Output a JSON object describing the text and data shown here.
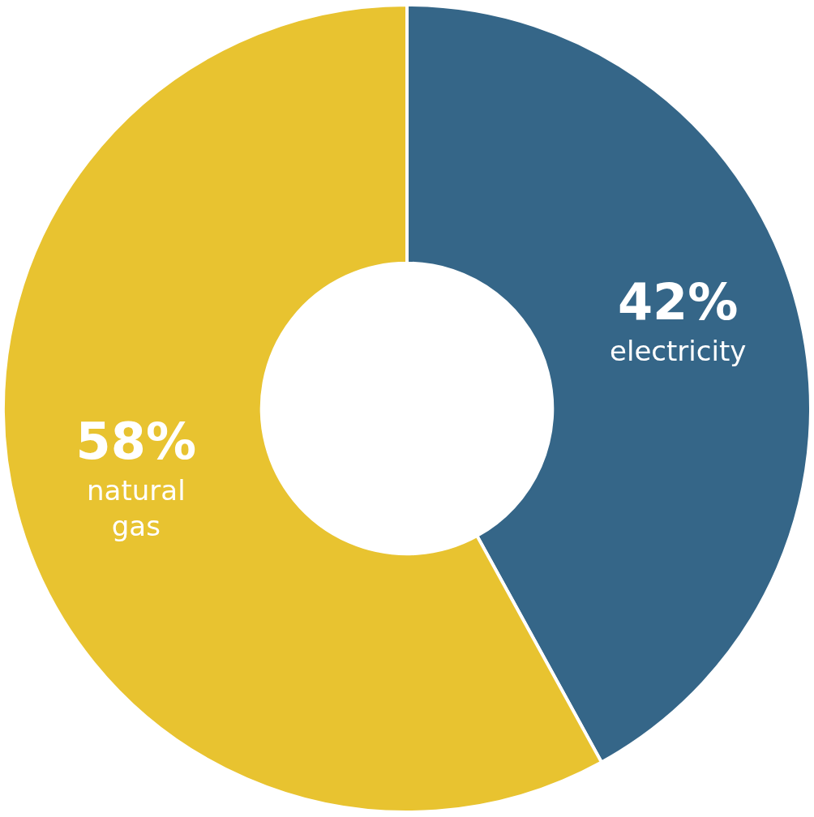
{
  "chart_data": {
    "type": "donut",
    "categories": [
      "electricity",
      "natural gas"
    ],
    "values": [
      42,
      58
    ],
    "colors": [
      "#356688",
      "#e8c330"
    ],
    "value_labels": [
      "42%",
      "58%"
    ]
  }
}
